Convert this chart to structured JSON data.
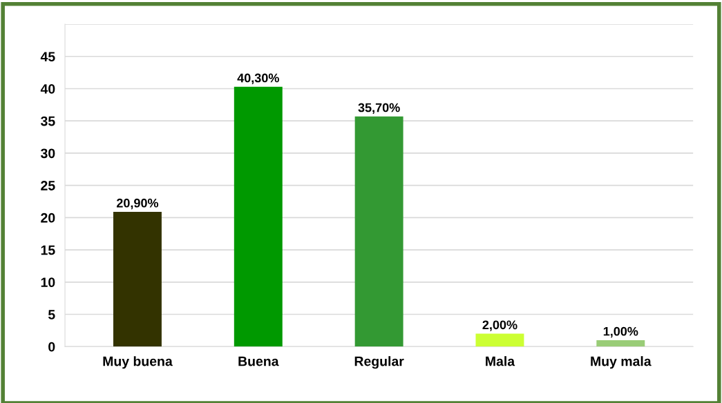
{
  "chart_data": {
    "type": "bar",
    "categories": [
      "Muy buena",
      "Buena",
      "Regular",
      "Mala",
      "Muy mala"
    ],
    "values": [
      20.9,
      40.3,
      35.7,
      2.0,
      1.0
    ],
    "colors": [
      "#333300",
      "#009900",
      "#339933",
      "#ccff33",
      "#99cc77"
    ],
    "value_labels": [
      "20,90%",
      "40,30%",
      "35,70%",
      "2,00%",
      "1,00%"
    ],
    "ylim": [
      0,
      50
    ],
    "yticks": [
      0,
      5,
      10,
      15,
      20,
      25,
      30,
      35,
      40,
      45,
      {
        "value": 50,
        "label": null
      }
    ],
    "grid": "y"
  }
}
